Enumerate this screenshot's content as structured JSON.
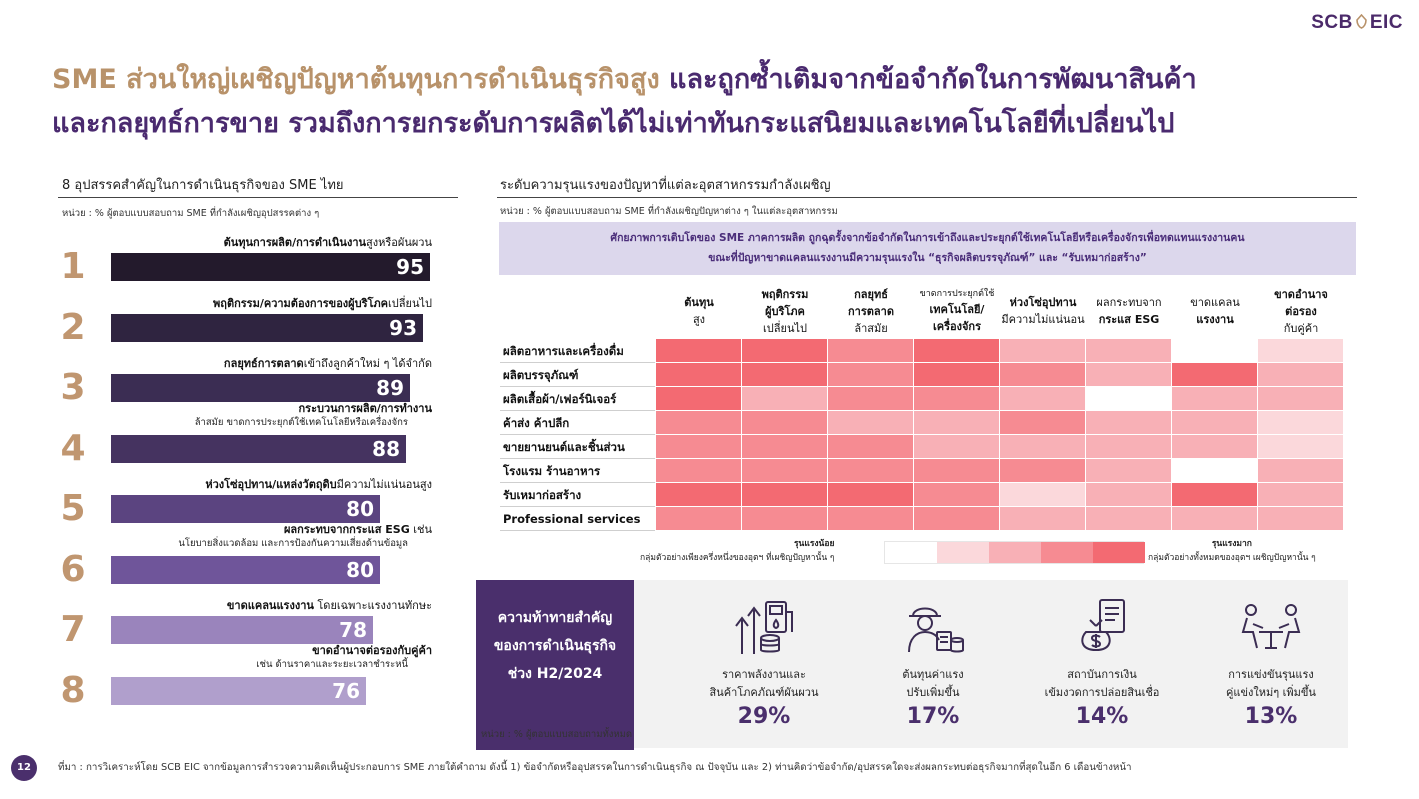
{
  "logo": {
    "left": "SCB",
    "right": "EIC"
  },
  "title": {
    "line1_highlight": "SME ส่วนใหญ่เผชิญปัญหาต้นทุนการดำเนินธุรกิจสูง",
    "line1_rest": " และถูกซ้ำเติมจากข้อจำกัดในการพัฒนาสินค้า",
    "line2": "และกลยุทธ์การขาย รวมถึงการยกระดับการผลิตได้ไม่เท่าทันกระแสนิยมและเทคโนโลยีที่เปลี่ยนไป"
  },
  "left_panel": {
    "title": "8 อุปสรรคสำคัญในการดำเนินธุรกิจของ SME ไทย",
    "unit": "หน่วย : % ผู้ตอบแบบสอบถาม SME ที่กำลังเผชิญอุปสรรคต่าง ๆ",
    "items": [
      {
        "rank": "1",
        "label_bold": "ต้นทุนการผลิต/การดำเนินงาน",
        "label_rest": "สูงหรือผันผวน",
        "sub": "",
        "value": 95,
        "value_text": "95",
        "color": "#231a2c"
      },
      {
        "rank": "2",
        "label_bold": "พฤติกรรม/ความต้องการของผู้บริโภค",
        "label_rest": "เปลี่ยนไป",
        "sub": "",
        "value": 93,
        "value_text": "93",
        "color": "#2f2440"
      },
      {
        "rank": "3",
        "label_bold": "กลยุทธ์การตลาด",
        "label_rest": "เข้าถึงลูกค้าใหม่ ๆ ได้จำกัด",
        "sub": "",
        "value": 89,
        "value_text": "89",
        "color": "#3b2d53"
      },
      {
        "rank": "4",
        "label_bold": "กระบวนการผลิต/การทำงาน",
        "label_rest": "",
        "sub": "ล้าสมัย ขาดการประยุกต์ใช้เทคโนโลยีหรือเครื่องจักร",
        "value": 88,
        "value_text": "88",
        "color": "#453360"
      },
      {
        "rank": "5",
        "label_bold": "ห่วงโซ่อุปทาน/แหล่งวัตถุดิบ",
        "label_rest": "มีความไม่แน่นอนสูง",
        "sub": "",
        "value": 80,
        "value_text": "80",
        "color": "#5b4480"
      },
      {
        "rank": "6",
        "label_bold": "ผลกระทบจากกระแส ESG",
        "label_rest": " เช่น",
        "sub": "นโยบายสิ่งแวดล้อม และการป้องกันความเสี่ยงด้านข้อมูล",
        "value": 80,
        "value_text": "80",
        "color": "#6f559a"
      },
      {
        "rank": "7",
        "label_bold": "ขาดแคลนแรงงาน",
        "label_rest": " โดยเฉพาะแรงงานทักษะ",
        "sub": "",
        "value": 78,
        "value_text": "78",
        "color": "#9a84bc"
      },
      {
        "rank": "8",
        "label_bold": "ขาดอำนาจต่อรองกับคู่ค้า",
        "label_rest": "",
        "sub": "เช่น ด้านราคาและระยะเวลาชำระหนี้",
        "value": 76,
        "value_text": "76",
        "color": "#b09fcc"
      }
    ]
  },
  "right_panel": {
    "title": "ระดับความรุนแรงของปัญหาที่แต่ละอุตสาหกรรมกำลังเผชิญ",
    "unit": "หน่วย : % ผู้ตอบแบบสอบถาม SME ที่กำลังเผชิญปัญหาต่าง ๆ ในแต่ละอุตสาหกรรม",
    "callout_line1": "ศักยภาพการเติบโตของ SME ภาคการผลิต ถูกฉุดรั้งจากข้อจำกัดในการเข้าถึงและประยุกต์ใช้เทคโนโลยีหรือเครื่องจักรเพื่อทดแทนแรงงานคน",
    "callout_line2": "ขณะที่ปัญหาขาดแคลนแรงงานมีความรุนแรงใน “ธุรกิจผลิตบรรจุภัณฑ์” และ “รับเหมาก่อสร้าง”",
    "columns": [
      {
        "l1": "ต้นทุน",
        "l2": "สูง",
        "l1b": true
      },
      {
        "l1": "พฤติกรรม",
        "l1x": "ผู้บริโภค",
        "l2": "เปลี่ยนไป",
        "l1b": true
      },
      {
        "l1": "กลยุทธ์",
        "l1x": "การตลาด",
        "l2": "ล้าสมัย",
        "l1b": true
      },
      {
        "l0": "ขาดการประยุกต์ใช้",
        "l1": "เทคโนโลยี/",
        "l2": "เครื่องจักร",
        "l1b": true
      },
      {
        "l1": "ห่วงโซ่อุปทาน",
        "l2": "มีความไม่แน่นอน",
        "l1b": true
      },
      {
        "l1": "ผลกระทบจาก",
        "l2": "กระแส ESG",
        "l1b": false
      },
      {
        "l1": "ขาดแคลน",
        "l2": "แรงงาน",
        "l1b": false
      },
      {
        "l1": "ขาดอำนาจ",
        "l1x": "ต่อรอง",
        "l2": "กับคู่ค้า",
        "l1b": true
      }
    ],
    "rows": [
      {
        "label": "ผลิตอาหารและเครื่องดื่ม",
        "levels": [
          5,
          5,
          4,
          5,
          3,
          3,
          1,
          2
        ]
      },
      {
        "label": "ผลิตบรรจุภัณฑ์",
        "levels": [
          5,
          5,
          4,
          5,
          4,
          3,
          5,
          3
        ]
      },
      {
        "label": "ผลิตเสื้อผ้า/เฟอร์นิเจอร์",
        "levels": [
          5,
          3,
          4,
          4,
          3,
          1,
          3,
          3
        ]
      },
      {
        "label": "ค้าส่ง ค้าปลีก",
        "levels": [
          4,
          4,
          3,
          3,
          4,
          3,
          3,
          2
        ]
      },
      {
        "label": "ขายยานยนต์และชิ้นส่วน",
        "levels": [
          4,
          4,
          4,
          3,
          3,
          3,
          3,
          2
        ]
      },
      {
        "label": "โรงแรม ร้านอาหาร",
        "levels": [
          4,
          4,
          4,
          4,
          4,
          3,
          1,
          3
        ]
      },
      {
        "label": "รับเหมาก่อสร้าง",
        "levels": [
          5,
          5,
          5,
          4,
          2,
          3,
          5,
          3
        ]
      },
      {
        "label": "Professional services",
        "levels": [
          4,
          4,
          4,
          4,
          3,
          3,
          3,
          3
        ]
      }
    ],
    "scale_colors": [
      "#ffffff",
      "#fbd8db",
      "#f8b0b6",
      "#f68b92",
      "#f36a72"
    ],
    "legend_low_title": "รุนแรงน้อย",
    "legend_low_text": "กลุ่มตัวอย่างเพียงครึ่งหนึ่งของอุตฯ ที่เผชิญปัญหานั้น ๆ",
    "legend_high_title": "รุนแรงมาก",
    "legend_high_text": "กลุ่มตัวอย่างทั้งหมดของอุตฯ เผชิญปัญหานั้น ๆ"
  },
  "challenges": {
    "box_l1": "ความท้าทายสำคัญ",
    "box_l2": "ของการดำเนินธุรกิจ",
    "box_l3": "ช่วง H2/2024",
    "items": [
      {
        "icon": "energy-price-icon",
        "l1": "ราคาพลังงานและ",
        "l2": "สินค้าโภคภัณฑ์ผันผวน",
        "pct": "29%"
      },
      {
        "icon": "worker-cost-icon",
        "l1": "ต้นทุนค่าแรง",
        "l2": "ปรับเพิ่มขึ้น",
        "pct": "17%"
      },
      {
        "icon": "loan-bag-icon",
        "l1": "สถาบันการเงิน",
        "l2": "เข้มงวดการปล่อยสินเชื่อ",
        "pct": "14%"
      },
      {
        "icon": "competition-icon",
        "l1": "การแข่งขันรุนแรง",
        "l2": "คู่แข่งใหม่ๆ เพิ่มขึ้น",
        "pct": "13%"
      }
    ],
    "unit": "หน่วย : % ผู้ตอบแบบสอบถามทั้งหมด"
  },
  "footer": {
    "page": "12",
    "source": "ที่มา : การวิเคราะห์โดย SCB EIC จากข้อมูลการสำรวจความคิดเห็นผู้ประกอบการ SME ภายใต้คำถาม ดังนี้ 1) ข้อจำกัดหรืออุปสรรคในการดำเนินธุรกิจ ณ ปัจจุบัน และ 2) ท่านคิดว่าข้อจำกัด/อุปสรรคใดจะส่งผลกระทบต่อธุรกิจมากที่สุดในอีก 6 เดือนข้างหน้า"
  }
}
